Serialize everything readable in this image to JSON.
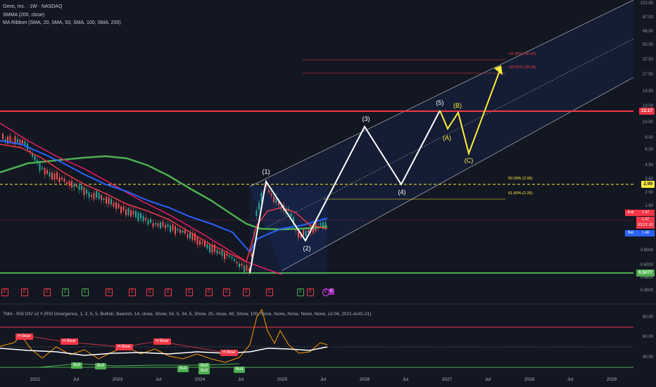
{
  "header": {
    "symbol_line": "Gevo, Inc. · 1W · NASDAQ",
    "smma_line": "SMMA (200, close)",
    "ma_ribbon_line": "MA Ribbon (SMA, 20, SMA, 50, SMA, 100, SMA, 200)"
  },
  "price_axis": {
    "labels": [
      "120.00",
      "87.00",
      "66.00",
      "50.00",
      "37.50",
      "27.50",
      "19.50",
      "13.00",
      "10.50",
      "8.00",
      "6.00",
      "4.50",
      "3.50",
      "2.50",
      "1.90",
      "0.8000",
      "0.6000",
      "0.4800",
      "0.3500"
    ],
    "tags": {
      "resistance": "13.17",
      "fib_level": "2.99",
      "ask_label": "Ask",
      "ask_value": "1.47",
      "last_value": "1.47",
      "countdown": "03:21:10",
      "bid_label": "Bid",
      "bid_value": "1.46",
      "support": "0.5077"
    }
  },
  "fib_labels": {
    "ext_618": "-61.80% (36.63)",
    "ext_50": "-50.00% (28.08)",
    "ret_50": "50.00% (2.95)",
    "ret_618": "61.80% (2.26)"
  },
  "waves": {
    "w1": "(1)",
    "w2": "(2)",
    "w3": "(3)",
    "w4": "(4)",
    "w5": "(5)",
    "wa": "(A)",
    "wb": "(B)",
    "wc": "(C)"
  },
  "events": {
    "earnings": [
      "E",
      "E",
      "E",
      "E",
      "E",
      "E",
      "E",
      "E",
      "E",
      "E",
      "E",
      "E",
      "E",
      "E",
      "E",
      "E",
      "E"
    ],
    "split": "E"
  },
  "rsi": {
    "title": "TMA - RSI DIV v2 ‼ (RSI Divergence, 1, 2, 5, 5, Bullish, Bearish, 14, close, Show, 50, 5, 34, 5, Show, 25, close, 40, Show, 100, None, None, None, None, None, v2.04, 2021-AUG-21)",
    "levels": [
      "80.00",
      "60.00",
      "40.00"
    ],
    "bear_labels": [
      "H Bear",
      "H Bear",
      "H Bear",
      "H Bear",
      "H Bear"
    ],
    "bull_labels": [
      "Bull",
      "Bull",
      "Bull",
      "Bull",
      "Bull",
      "Bull"
    ]
  },
  "time_axis": [
    "2022",
    "Jul",
    "2023",
    "Jul",
    "2024",
    "Jul",
    "2025",
    "Jul",
    "2026",
    "Jul",
    "2027",
    "Jul",
    "2028",
    "Jul",
    "2029"
  ],
  "colors": {
    "background": "#131722",
    "resistance_line": "#f23645",
    "support_line": "#4caf50",
    "fib_line": "#ffeb3b",
    "projection_white": "#ffffff",
    "projection_yellow": "#ffeb3b",
    "ma_red": "#f23645",
    "ma_blue": "#2962ff",
    "ma_green": "#4caf50",
    "ma_pink": "#e91e63",
    "rsi_line": "#ff9800"
  }
}
